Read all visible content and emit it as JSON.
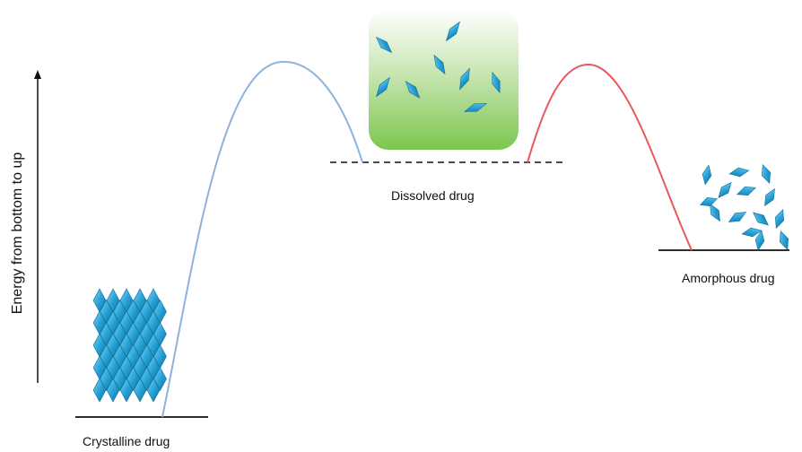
{
  "axis": {
    "label": "Energy from bottom to up"
  },
  "states": [
    {
      "id": "crystalline",
      "label": "Crystalline drug"
    },
    {
      "id": "dissolved",
      "label": "Dissolved drug"
    },
    {
      "id": "amorphous",
      "label": "Amorphous drug"
    }
  ],
  "colors": {
    "crystal_fill": "#2aa3d8",
    "crystal_stroke": "#0e6f9c",
    "curve_left": "#8db3dd",
    "curve_right": "#e8585e",
    "level_line": "#111111",
    "beaker_top": "#ffffff",
    "beaker_bottom": "#7cc64f"
  }
}
